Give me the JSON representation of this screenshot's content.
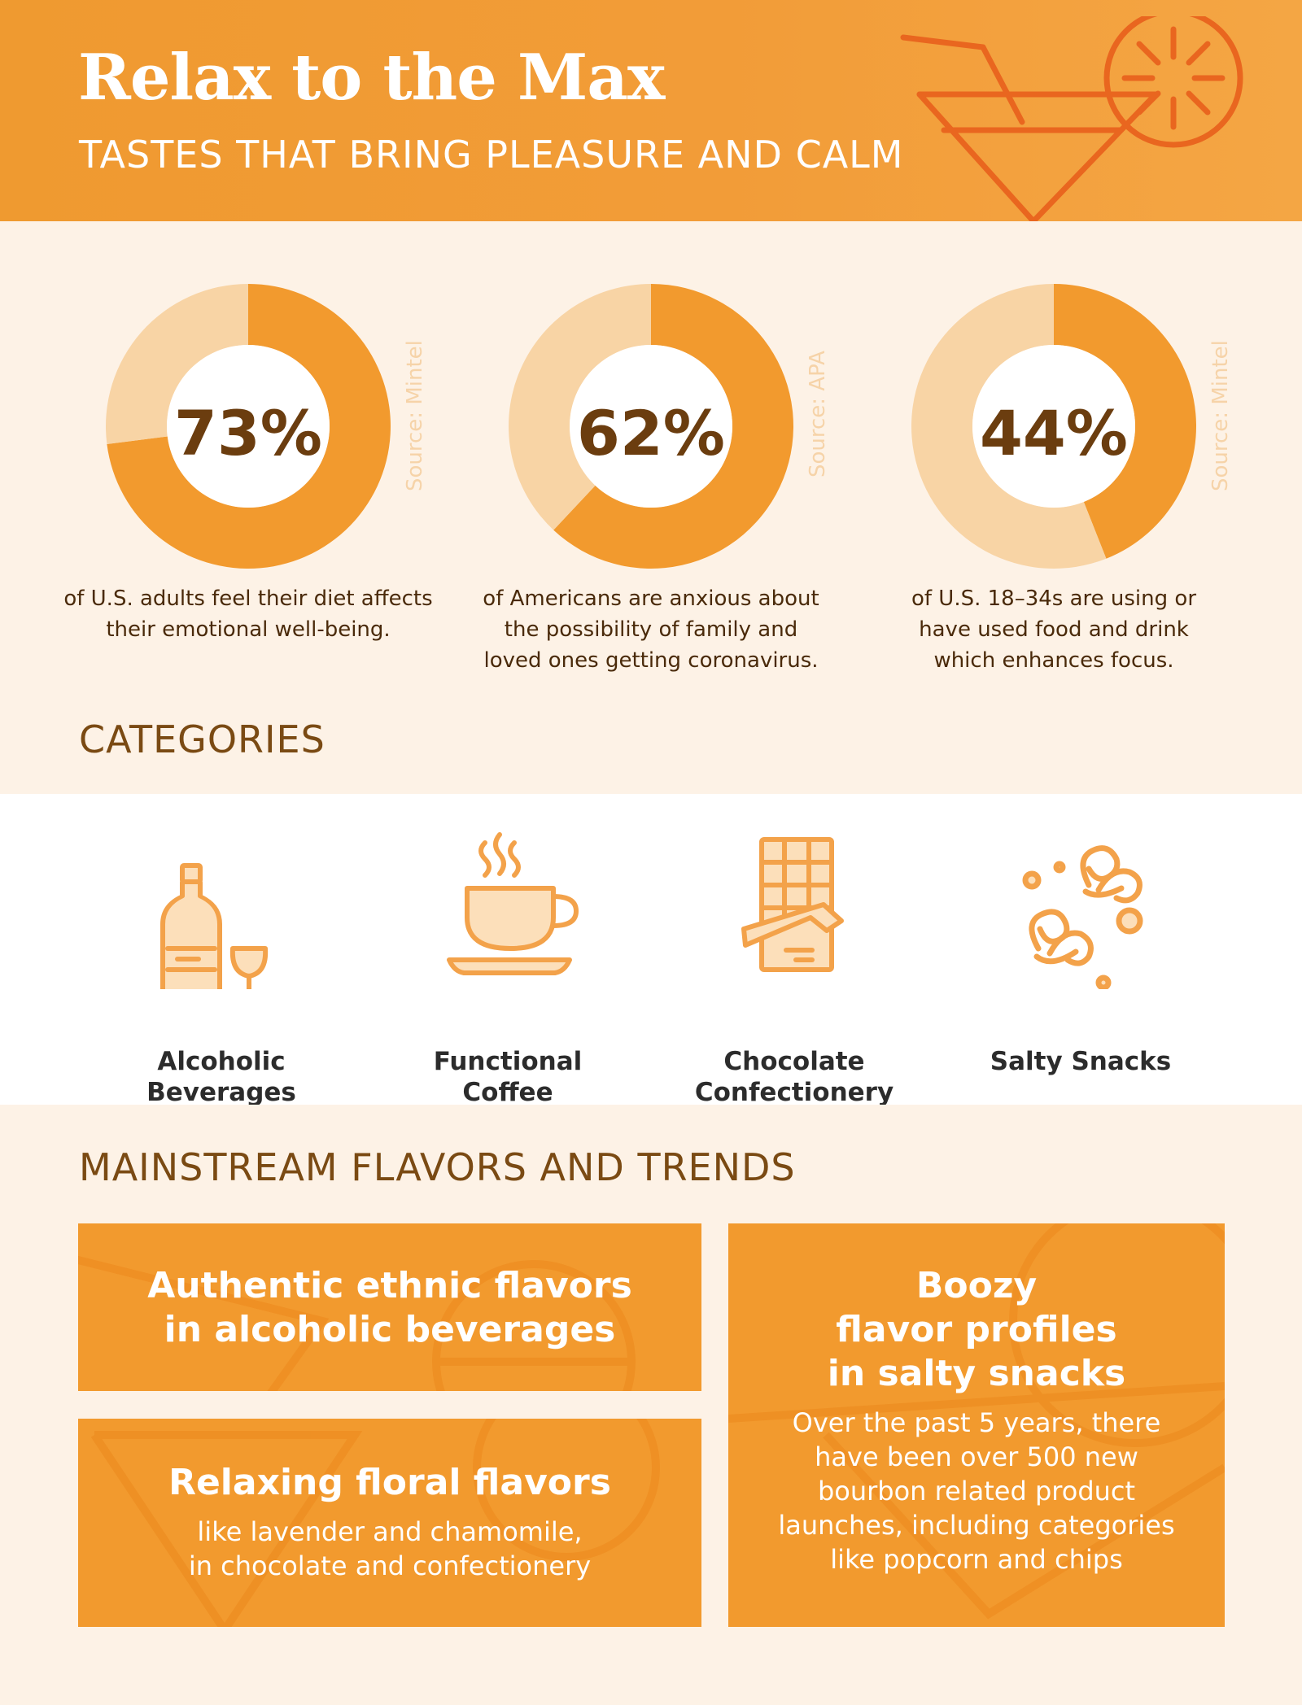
{
  "header": {
    "title": "Relax to the Max",
    "subtitle": "TASTES THAT BRING PLEASURE AND CALM"
  },
  "colors": {
    "accent": "#f29a2e",
    "donut_light": "#f8d4a5",
    "heading_brown": "#7a4a13",
    "icon_orange": "#f3a24a",
    "icon_fill": "#fcdfba"
  },
  "chart_data": [
    {
      "type": "pie",
      "value_label": "73%",
      "values": [
        73,
        27
      ],
      "source": "Source: Mintel",
      "description": [
        "of U.S. adults feel their diet affects",
        "their emotional well-being."
      ]
    },
    {
      "type": "pie",
      "value_label": "62%",
      "values": [
        62,
        38
      ],
      "source": "Source: APA",
      "description": [
        "of Americans are anxious about",
        "the possibility of family and",
        "loved ones getting coronavirus."
      ]
    },
    {
      "type": "pie",
      "value_label": "44%",
      "values": [
        44,
        56
      ],
      "source": "Source: Mintel",
      "description": [
        "of U.S. 18–34s are using or",
        "have used food and drink",
        "which enhances focus."
      ]
    }
  ],
  "categories": {
    "heading": "CATEGORIES",
    "items": [
      {
        "icon": "wine-bottle-icon",
        "label": [
          "Alcoholic",
          "Beverages"
        ]
      },
      {
        "icon": "coffee-cup-icon",
        "label": [
          "Functional",
          "Coffee"
        ]
      },
      {
        "icon": "chocolate-bar-icon",
        "label": [
          "Chocolate",
          "Confectionery"
        ]
      },
      {
        "icon": "pretzel-icon",
        "label": [
          "Salty Snacks"
        ]
      }
    ]
  },
  "trends": {
    "heading": "MAINSTREAM FLAVORS AND TRENDS",
    "cards": [
      {
        "title": [
          "Authentic ethnic flavors",
          "in alcoholic beverages"
        ],
        "text": []
      },
      {
        "title": [
          "Relaxing floral flavors"
        ],
        "text": [
          "like lavender and chamomile,",
          "in chocolate and confectionery"
        ]
      },
      {
        "title": [
          "Boozy",
          "flavor profiles",
          "in salty snacks"
        ],
        "text": [
          "Over the past 5 years, there",
          "have been over 500 new",
          "bourbon related product",
          "launches, including categories",
          "like popcorn and chips"
        ]
      }
    ]
  }
}
